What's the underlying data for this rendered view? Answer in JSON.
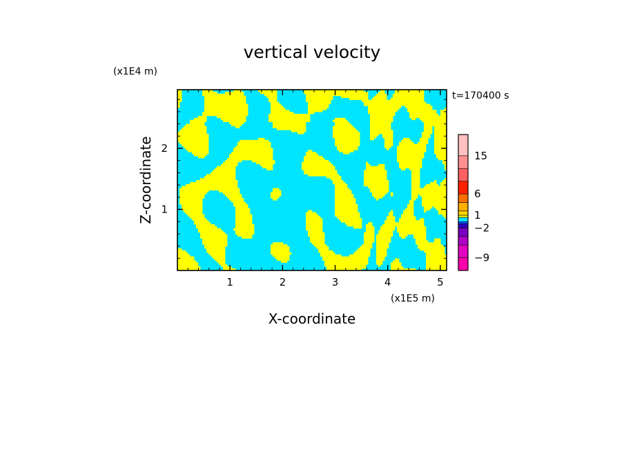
{
  "chart_data": {
    "type": "heatmap",
    "title": "vertical velocity",
    "xlabel": "X-coordinate",
    "ylabel": "Z-coordinate",
    "x_unit": "(x1E5 m)",
    "y_unit": "(x1E4 m)",
    "time_label": "t=170400 s",
    "xlim": [
      0,
      5.12
    ],
    "ylim": [
      0,
      2.96
    ],
    "x_ticks": [
      1,
      2,
      3,
      4,
      5
    ],
    "y_ticks": [
      1,
      2
    ],
    "field_colors": {
      "positive": "#ffff00",
      "negative": "#00e5ff"
    },
    "colorbar": {
      "labels": [
        "15",
        "6",
        "1",
        "−2",
        "−9"
      ],
      "label_values": [
        15,
        6,
        1,
        -2,
        -9
      ],
      "levels": [
        -12,
        -9,
        -6,
        -4,
        -2,
        -1,
        -0.5,
        0.5,
        1,
        2,
        4,
        6,
        9,
        12,
        15,
        20
      ],
      "colors": [
        "#ff00aa",
        "#e000c0",
        "#b000c8",
        "#7a00c0",
        "#2a00c0",
        "#0050ff",
        "#00e5ff",
        "#ffff00",
        "#ffd700",
        "#ffb000",
        "#ff7000",
        "#ff2000",
        "#ff6060",
        "#ff9090",
        "#ffc0c0",
        "#ffecec"
      ]
    },
    "sign_pattern": {
      "description_values": "sign of vertical velocity, positive (yellow) vs negative (cyan)",
      "dominant_negative_x": [
        1.3,
        2.6
      ],
      "wave_band_x": [
        3.6,
        5.0
      ]
    }
  }
}
